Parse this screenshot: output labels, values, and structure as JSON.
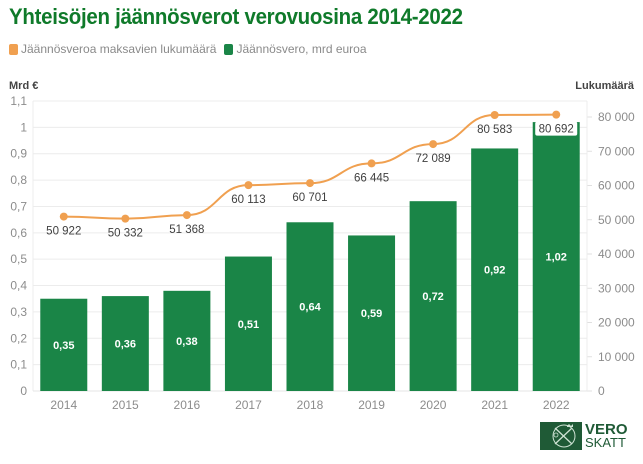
{
  "title": "Yhteisöjen jäännösverot verovuosina 2014-2022",
  "legend": [
    {
      "label": "Jäännösveroa maksavien lukumäärä",
      "color": "#f0a050"
    },
    {
      "label": "Jäännösvero, mrd euroa",
      "color": "#1a8547"
    }
  ],
  "left_axis_title": "Mrd €",
  "right_axis_title": "Lukumäärä",
  "logo": {
    "line1": "VERO",
    "line2": "SKATT",
    "color": "#1f5a36"
  },
  "chart_data": {
    "type": "bar",
    "title": "Yhteisöjen jäännösverot verovuosina 2014-2022",
    "categories": [
      "2014",
      "2015",
      "2016",
      "2017",
      "2018",
      "2019",
      "2020",
      "2021",
      "2022"
    ],
    "series": [
      {
        "name": "Jäännösvero, mrd euroa",
        "type": "bar",
        "axis": "left",
        "color": "#1a8547",
        "values": [
          0.35,
          0.36,
          0.38,
          0.51,
          0.64,
          0.59,
          0.72,
          0.92,
          1.02
        ],
        "labels": [
          "0,35",
          "0,36",
          "0,38",
          "0,51",
          "0,64",
          "0,59",
          "0,72",
          "0,92",
          "1,02"
        ]
      },
      {
        "name": "Jäännösveroa maksavien lukumäärä",
        "type": "line",
        "axis": "right",
        "color": "#f0a050",
        "values": [
          50922,
          50332,
          51368,
          60113,
          60701,
          66445,
          72089,
          80583,
          80692
        ],
        "labels": [
          "50 922",
          "50 332",
          "51 368",
          "60 113",
          "60 701",
          "66 445",
          "72 089",
          "80 583",
          "80 692"
        ]
      }
    ],
    "ylabel_left": "Mrd €",
    "ylabel_right": "Lukumäärä",
    "ylim_left": [
      0,
      1.1
    ],
    "ylim_right": [
      0,
      85000
    ],
    "yticks_left": [
      "0",
      "0,1",
      "0,2",
      "0,3",
      "0,4",
      "0,5",
      "0,6",
      "0,7",
      "0,8",
      "0,9",
      "1",
      "1,1"
    ],
    "yticks_left_values": [
      0,
      0.1,
      0.2,
      0.3,
      0.4,
      0.5,
      0.6,
      0.7,
      0.8,
      0.9,
      1.0,
      1.1
    ],
    "yticks_right": [
      "0",
      "10 000",
      "20 000",
      "30 000",
      "40 000",
      "50 000",
      "60 000",
      "70 000",
      "80 000"
    ],
    "yticks_right_values": [
      0,
      10000,
      20000,
      30000,
      40000,
      50000,
      60000,
      70000,
      80000
    ],
    "grid": true,
    "legend_position": "top-left"
  }
}
